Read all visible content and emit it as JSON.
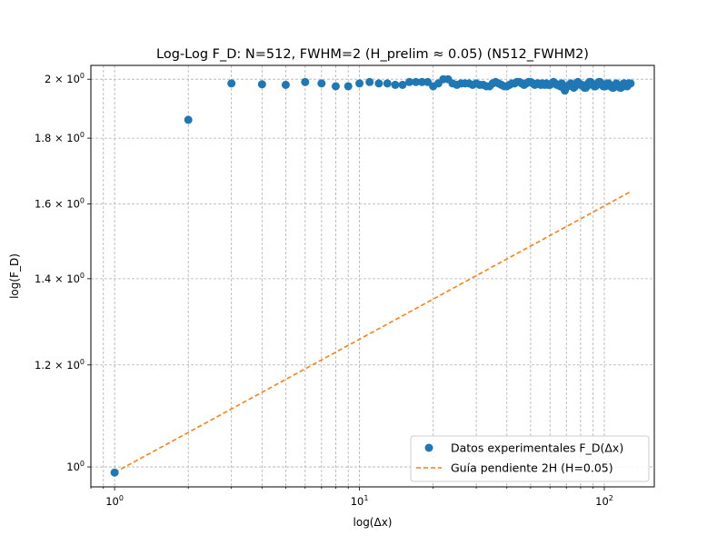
{
  "chart_data": {
    "type": "scatter",
    "title": "Log-Log F_D: N=512, FWHM=2 (H_prelim ≈ 0.05) (N512_FWHM2)",
    "xlabel": "log(Δx)",
    "ylabel": "log(F_D)",
    "x_scale": "log",
    "y_scale": "log",
    "xlim": [
      0.8,
      160
    ],
    "ylim": [
      0.965,
      2.05
    ],
    "grid": true,
    "grid_minor": true,
    "legend_position": "lower-right",
    "x_ticks": [
      {
        "value": 1,
        "label_base": "10",
        "label_exp": "0"
      },
      {
        "value": 10,
        "label_base": "10",
        "label_exp": "1"
      },
      {
        "value": 100,
        "label_base": "10",
        "label_exp": "2"
      }
    ],
    "y_ticks": [
      {
        "value": 1.0,
        "label_base": "10",
        "label_exp": "0",
        "label_coef": ""
      },
      {
        "value": 1.2,
        "label_coef": "1.2",
        "label_base": "10",
        "label_exp": "0"
      },
      {
        "value": 1.4,
        "label_coef": "1.4",
        "label_base": "10",
        "label_exp": "0"
      },
      {
        "value": 1.6,
        "label_coef": "1.6",
        "label_base": "10",
        "label_exp": "0"
      },
      {
        "value": 1.8,
        "label_coef": "1.8",
        "label_base": "10",
        "label_exp": "0"
      },
      {
        "value": 2.0,
        "label_coef": "2",
        "label_base": "10",
        "label_exp": "0"
      }
    ],
    "series": [
      {
        "name": "Datos experimentales F_D(Δx)",
        "kind": "scatter",
        "color": "#1f77b4",
        "x": [
          1,
          2,
          3,
          4,
          5,
          6,
          7,
          8,
          9,
          10,
          11,
          12,
          13,
          14,
          15,
          16,
          17,
          18,
          19,
          20,
          21,
          22,
          23,
          24,
          25,
          26,
          27,
          28,
          29,
          30,
          31,
          32,
          33,
          34,
          35,
          36,
          37,
          38,
          39,
          40,
          41,
          42,
          43,
          44,
          45,
          46,
          47,
          48,
          49,
          50,
          51,
          52,
          53,
          54,
          55,
          56,
          57,
          58,
          59,
          60,
          61,
          62,
          63,
          64,
          65,
          66,
          67,
          68,
          69,
          70,
          71,
          72,
          73,
          74,
          75,
          76,
          77,
          78,
          79,
          80,
          81,
          82,
          83,
          84,
          85,
          86,
          87,
          88,
          89,
          90,
          91,
          92,
          93,
          94,
          95,
          96,
          97,
          98,
          99,
          100,
          101,
          102,
          103,
          104,
          105,
          106,
          107,
          108,
          109,
          110,
          111,
          112,
          113,
          114,
          115,
          116,
          117,
          118,
          119,
          120,
          121,
          122,
          123,
          124,
          125,
          126,
          127,
          128
        ],
        "y": [
          0.99,
          1.86,
          1.985,
          1.982,
          1.98,
          1.99,
          1.985,
          1.975,
          1.975,
          1.985,
          1.99,
          1.985,
          1.985,
          1.98,
          1.98,
          1.99,
          1.99,
          1.99,
          1.99,
          1.975,
          1.985,
          2.0,
          2.0,
          1.985,
          1.98,
          1.985,
          1.985,
          1.985,
          1.98,
          1.985,
          1.98,
          1.98,
          1.975,
          1.975,
          1.985,
          1.99,
          1.985,
          1.98,
          1.975,
          1.975,
          1.98,
          1.985,
          1.985,
          1.99,
          1.99,
          1.985,
          1.98,
          1.985,
          1.99,
          1.99,
          1.985,
          1.98,
          1.985,
          1.985,
          1.98,
          1.985,
          1.98,
          1.985,
          1.98,
          1.98,
          1.985,
          1.99,
          1.985,
          1.98,
          1.98,
          1.975,
          1.985,
          1.97,
          1.96,
          1.975,
          1.975,
          1.98,
          1.985,
          1.975,
          1.97,
          1.975,
          1.985,
          1.99,
          1.985,
          1.98,
          1.98,
          1.975,
          1.97,
          1.97,
          1.975,
          1.985,
          1.99,
          1.99,
          1.985,
          1.98,
          1.975,
          1.975,
          1.98,
          1.985,
          1.99,
          1.99,
          1.985,
          1.98,
          1.975,
          1.975,
          1.975,
          1.98,
          1.985,
          1.985,
          1.98,
          1.975,
          1.975,
          1.97,
          1.97,
          1.975,
          1.98,
          1.985,
          1.98,
          1.975,
          1.975,
          1.97,
          1.97,
          1.975,
          1.98,
          1.985,
          1.985,
          1.98,
          1.975,
          1.975,
          1.98,
          1.985,
          1.985,
          1.985
        ]
      },
      {
        "name": "Guía pendiente 2H (H=0.05)",
        "kind": "dashed-line",
        "color": "#ff7f0e",
        "x": [
          1,
          128
        ],
        "y": [
          0.99,
          1.6358
        ]
      }
    ]
  }
}
